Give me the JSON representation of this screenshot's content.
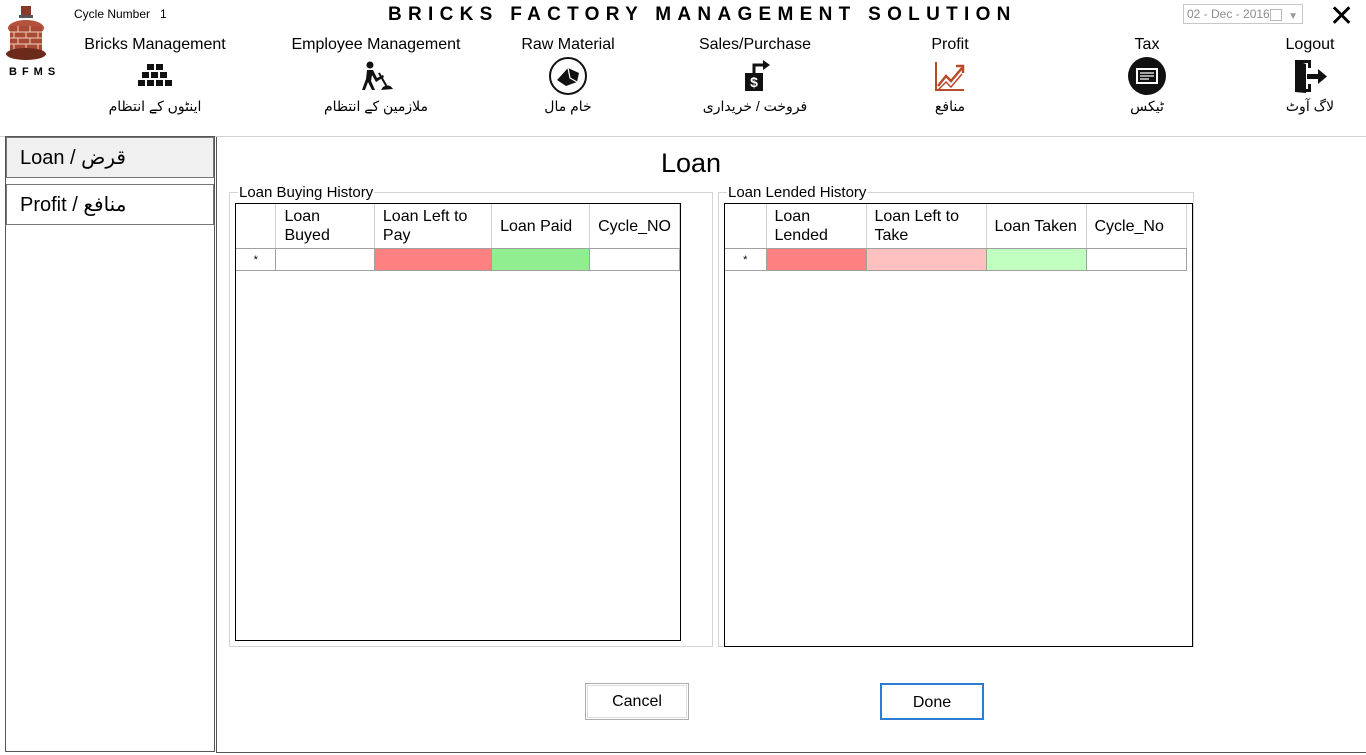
{
  "app": {
    "title": "BRICKS FACTORY MANAGEMENT SOLUTION",
    "abbrev": "BFMS",
    "cycle_label": "Cycle Number",
    "cycle_value": "1",
    "date": "02 - Dec - 2016",
    "close_glyph": "✕"
  },
  "nav": [
    {
      "en": "Bricks Management",
      "ur": "اینٹوں کے انتظام",
      "icon": "bricks-icon"
    },
    {
      "en": "Employee Management",
      "ur": "ملازمین کے انتظام",
      "icon": "worker-digging-icon"
    },
    {
      "en": "Raw Material",
      "ur": "خام مال",
      "icon": "raw-material-icon"
    },
    {
      "en": "Sales/Purchase",
      "ur": "فروخت / خریداری",
      "icon": "dollar-transfer-icon"
    },
    {
      "en": "Profit",
      "ur": "منافع",
      "icon": "profit-chart-icon"
    },
    {
      "en": "Tax",
      "ur": "ٹیکس",
      "icon": "tax-icon"
    },
    {
      "en": "Logout",
      "ur": "لاگ آوٹ",
      "icon": "logout-door-icon"
    }
  ],
  "sidebar": {
    "items": [
      {
        "label": "Loan / قرض"
      },
      {
        "label": "Profit / منافع"
      }
    ]
  },
  "page": {
    "heading": "Loan"
  },
  "buying": {
    "legend": "Loan Buying History",
    "columns": [
      "Loan Buyed",
      "Loan Left to Pay",
      "Loan Paid",
      "Cycle_NO"
    ],
    "new_row_marker": "*",
    "cell_colors": [
      "#ffffff",
      "#ff8080",
      "#90ee90",
      "#ffffff"
    ]
  },
  "lended": {
    "legend": "Loan Lended History",
    "columns": [
      "Loan Lended",
      "Loan Left to Take",
      "Loan Taken",
      "Cycle_No"
    ],
    "new_row_marker": "*",
    "cell_colors": [
      "#ff8080",
      "#ffc0c0",
      "#c0ffc0",
      "#ffffff"
    ]
  },
  "buttons": {
    "cancel": "Cancel",
    "done": "Done"
  }
}
